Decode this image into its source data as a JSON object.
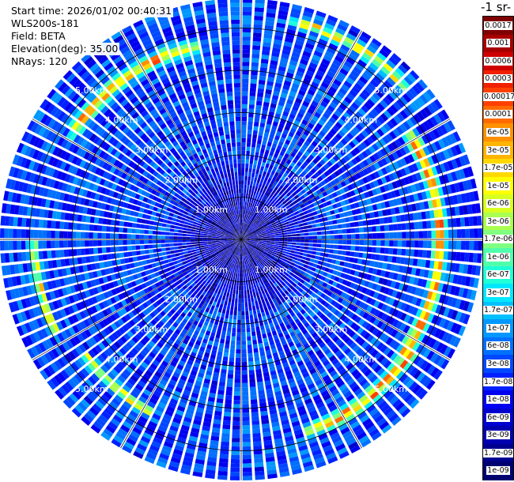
{
  "info": {
    "start_time": "Start time: 2026/01/02 00:40:31",
    "instrument": "WLS200s-181",
    "field": "Field: BETA",
    "elevation": "Elevation(deg): 35.00",
    "nrays": "NRays: 120"
  },
  "colorbar": {
    "title": "-1 sr-",
    "labels": [
      "0.0017",
      "0.001",
      "0.0006",
      "0.0003",
      "0.00017",
      "0.0001",
      "6e-05",
      "3e-05",
      "1.7e-05",
      "1e-05",
      "6e-06",
      "3e-06",
      "1.7e-06",
      "1e-06",
      "6e-07",
      "3e-07",
      "1.7e-07",
      "1e-07",
      "6e-08",
      "3e-08",
      "1.7e-08",
      "1e-08",
      "6e-09",
      "3e-09",
      "1.7e-09",
      "1e-09"
    ],
    "colors": [
      "#7f0000",
      "#a80000",
      "#d00000",
      "#f02000",
      "#ff4000",
      "#ff6a00",
      "#ff9000",
      "#ffb400",
      "#ffd800",
      "#ffff00",
      "#d8ff20",
      "#aaff50",
      "#80ff80",
      "#50ffaa",
      "#20ffd8",
      "#00e8ff",
      "#00c0ff",
      "#0098ff",
      "#0070ff",
      "#0048ff",
      "#0020ff",
      "#0000f0",
      "#0000d0",
      "#0000b0",
      "#000090",
      "#000070"
    ]
  },
  "chart_data": {
    "type": "ppi",
    "field": "BETA",
    "elevation_deg": 35.0,
    "n_rays": 120,
    "range_rings_km": [
      1,
      2,
      3,
      4,
      5
    ],
    "ring_labels": [
      "1.00km",
      "2.00km",
      "3.00km",
      "4.00km",
      "5.00km"
    ],
    "max_range_km": 5.7,
    "azimuth_lines_deg": [
      0,
      30,
      60,
      90,
      120,
      150,
      180,
      210,
      240,
      270,
      300,
      330
    ],
    "color_scale": "log",
    "value_range": [
      1e-09,
      0.0017
    ],
    "background_level": 3e-08,
    "features": [
      {
        "name": "east-northeast arc",
        "azimuth_deg": [
          60,
          125
        ],
        "range_km": 4.7,
        "peak": 3e-05
      },
      {
        "name": "southeast arc",
        "azimuth_deg": [
          125,
          158
        ],
        "range_km": 4.8,
        "peak": 3e-05
      },
      {
        "name": "northwest arc",
        "azimuth_deg": [
          305,
          345
        ],
        "range_km": 4.7,
        "peak": 3e-05
      },
      {
        "name": "north-northeast arc",
        "azimuth_deg": [
          15,
          45
        ],
        "range_km": 5.3,
        "peak": 1e-05
      },
      {
        "name": "west arc",
        "azimuth_deg": [
          245,
          268
        ],
        "range_km": 4.9,
        "peak": 6e-06
      },
      {
        "name": "southwest arc",
        "azimuth_deg": [
          210,
          232
        ],
        "range_km": 4.6,
        "peak": 6e-06
      }
    ]
  }
}
